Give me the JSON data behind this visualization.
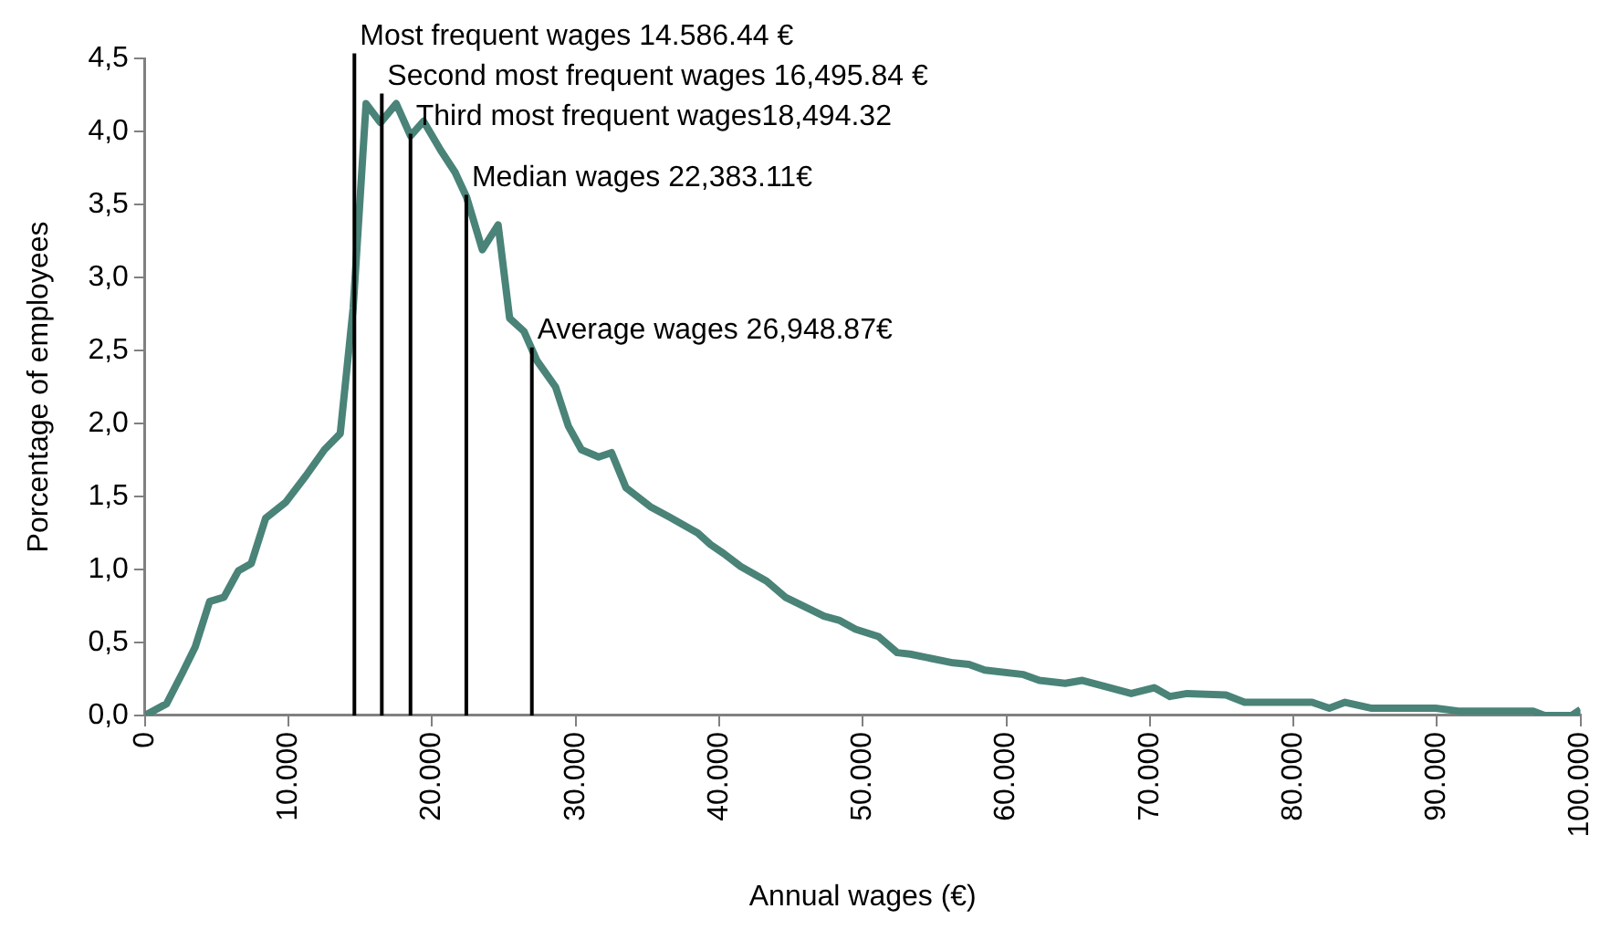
{
  "chart_data": {
    "type": "line",
    "xlabel": "Annual wages (€)",
    "ylabel": "Porcentage of employees",
    "x": [
      0,
      1500,
      2600,
      3500,
      4500,
      5500,
      6500,
      7400,
      8400,
      9800,
      11200,
      12500,
      13600,
      14500,
      15400,
      16400,
      17500,
      18500,
      19400,
      20600,
      21600,
      22400,
      23500,
      24600,
      25400,
      26400,
      27300,
      28600,
      29500,
      30400,
      31600,
      32500,
      33500,
      35200,
      36500,
      38500,
      39400,
      40300,
      41500,
      43300,
      44600,
      47300,
      48400,
      49500,
      51100,
      52400,
      53300,
      56300,
      57400,
      58500,
      61200,
      62300,
      64100,
      65300,
      66800,
      68700,
      70300,
      71400,
      72600,
      75300,
      76600,
      81300,
      82500,
      83600,
      85400,
      89900,
      91500,
      96700,
      97500,
      99400,
      100000
    ],
    "series": [
      {
        "color": "#4a8378",
        "values": [
          0,
          0.08,
          0.29,
          0.47,
          0.78,
          0.81,
          0.99,
          1.04,
          1.35,
          1.46,
          1.64,
          1.82,
          1.93,
          2.79,
          4.19,
          4.06,
          4.19,
          3.97,
          4.07,
          3.87,
          3.72,
          3.55,
          3.19,
          3.36,
          2.72,
          2.63,
          2.43,
          2.25,
          1.98,
          1.82,
          1.77,
          1.8,
          1.56,
          1.43,
          1.36,
          1.25,
          1.17,
          1.11,
          1.02,
          0.92,
          0.81,
          0.68,
          0.65,
          0.59,
          0.54,
          0.43,
          0.42,
          0.36,
          0.35,
          0.31,
          0.28,
          0.24,
          0.22,
          0.24,
          0.2,
          0.15,
          0.19,
          0.13,
          0.15,
          0.14,
          0.09,
          0.09,
          0.05,
          0.09,
          0.05,
          0.05,
          0.03,
          0.03,
          0,
          0,
          0.04
        ]
      }
    ],
    "xlim": [
      0,
      100000
    ],
    "xticks": [
      0,
      {
        "value": 10000,
        "label": "10.000"
      },
      {
        "value": 20000,
        "label": "20.000"
      },
      {
        "value": 30000,
        "label": "30.000"
      },
      {
        "value": 40000,
        "label": "40.000"
      },
      {
        "value": 50000,
        "label": "50.000"
      },
      {
        "value": 60000,
        "label": "60.000"
      },
      {
        "value": 70000,
        "label": "70.000"
      },
      {
        "value": 80000,
        "label": "80.000"
      },
      {
        "value": 90000,
        "label": "90.000"
      },
      {
        "value": 100000,
        "label": "100.000"
      }
    ],
    "ylim": [
      0,
      4.5
    ],
    "yticks": [
      {
        "value": 0,
        "label": "0,0"
      },
      {
        "value": 0.5,
        "label": "0,5"
      },
      {
        "value": 1,
        "label": "1,0"
      },
      {
        "value": 1.5,
        "label": "1,5"
      },
      {
        "value": 2,
        "label": "2,0"
      },
      {
        "value": 2.5,
        "label": "2,5"
      },
      {
        "value": 3,
        "label": "3,0"
      },
      {
        "value": 3.5,
        "label": "3,5"
      },
      {
        "value": 4,
        "label": "4,0"
      },
      {
        "value": 4.5,
        "label": "4,5"
      }
    ],
    "ref_lines": [
      {
        "axis": "x",
        "value": 14586.44,
        "label": "Most frequent wages 14.586.44 €",
        "color": "#000000"
      },
      {
        "axis": "x",
        "value": 16495.84,
        "label": "Second most frequent wages 16,495.84 €",
        "color": "#000000"
      },
      {
        "axis": "x",
        "value": 18494.32,
        "label": "Third most frequent wages18,494.32",
        "color": "#000000"
      },
      {
        "axis": "x",
        "value": 22383.11,
        "label": "Median wages 22,383.11€",
        "color": "#000000"
      },
      {
        "axis": "x",
        "value": 26948.87,
        "label": "Average wages 26,948.87€",
        "color": "#000000"
      }
    ],
    "grid": false,
    "legend": false,
    "marker": "none",
    "line_style": "solid"
  }
}
